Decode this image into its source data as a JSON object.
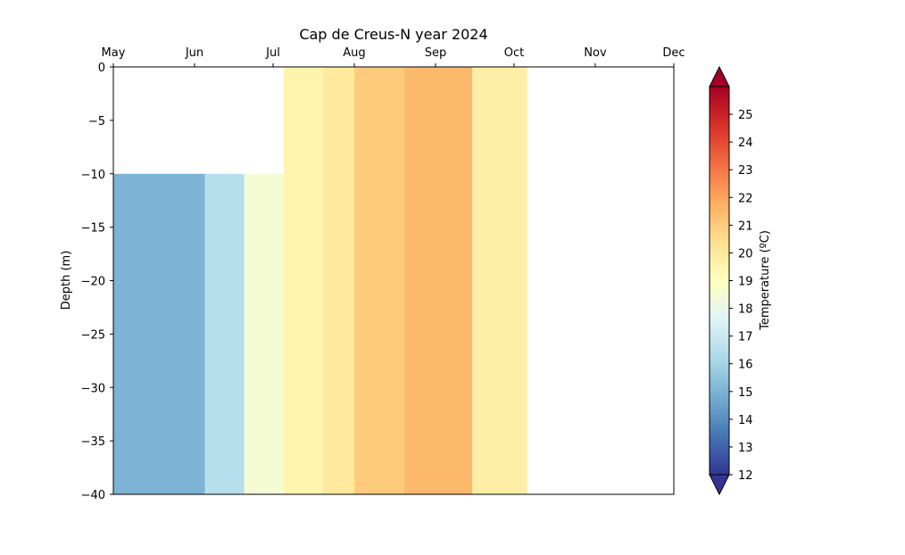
{
  "chart_data": {
    "type": "heatmap",
    "title": "Cap de Creus-N year 2024",
    "xlabel": "",
    "ylabel": "Depth (m)",
    "x_axis_position": "top",
    "x_type": "date",
    "xlim": [
      "2024-05-01",
      "2024-12-01"
    ],
    "x_ticks": [
      {
        "date": "2024-05-01",
        "label": "May"
      },
      {
        "date": "2024-06-01",
        "label": "Jun"
      },
      {
        "date": "2024-07-01",
        "label": "Jul"
      },
      {
        "date": "2024-08-01",
        "label": "Aug"
      },
      {
        "date": "2024-09-01",
        "label": "Sep"
      },
      {
        "date": "2024-10-01",
        "label": "Oct"
      },
      {
        "date": "2024-11-01",
        "label": "Nov"
      },
      {
        "date": "2024-12-01",
        "label": "Dec"
      }
    ],
    "ylim": [
      -40,
      0
    ],
    "y_ticks": [
      0,
      -5,
      -10,
      -15,
      -20,
      -25,
      -30,
      -35,
      -40
    ],
    "grid": false,
    "colormap": "RdYlBu_r",
    "colorbar": {
      "label": "Temperature (ºC)",
      "range": [
        12,
        26
      ],
      "ticks": [
        12,
        13,
        14,
        15,
        16,
        17,
        18,
        19,
        20,
        21,
        22,
        23,
        24,
        25
      ],
      "extend": "both",
      "position": "right"
    },
    "observations": [
      {
        "start": "2024-05-01",
        "end": "2024-06-05",
        "top": -10,
        "bottom": -40,
        "temperature": 15.0
      },
      {
        "start": "2024-06-05",
        "end": "2024-06-20",
        "top": -10,
        "bottom": -40,
        "temperature": 16.5
      },
      {
        "start": "2024-06-20",
        "end": "2024-07-05",
        "top": -10,
        "bottom": -40,
        "temperature": 18.5
      },
      {
        "start": "2024-07-05",
        "end": "2024-07-20",
        "top": 0,
        "bottom": -40,
        "temperature": 19.5
      },
      {
        "start": "2024-07-20",
        "end": "2024-08-01",
        "top": 0,
        "bottom": -40,
        "temperature": 20.0
      },
      {
        "start": "2024-08-01",
        "end": "2024-08-20",
        "top": 0,
        "bottom": -40,
        "temperature": 21.0
      },
      {
        "start": "2024-08-20",
        "end": "2024-09-15",
        "top": 0,
        "bottom": -40,
        "temperature": 21.5
      },
      {
        "start": "2024-09-15",
        "end": "2024-10-06",
        "top": 0,
        "bottom": -40,
        "temperature": 19.8
      }
    ]
  }
}
